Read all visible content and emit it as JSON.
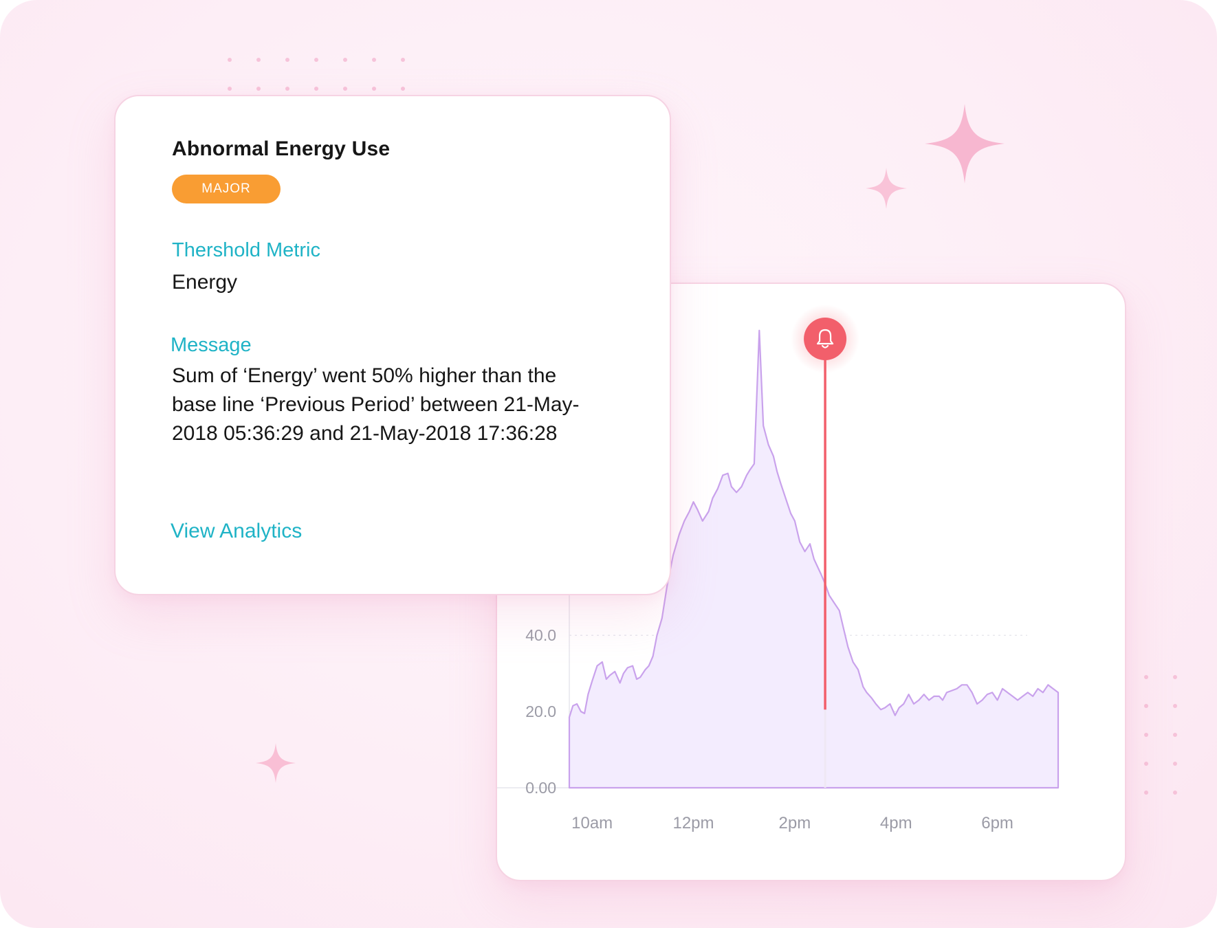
{
  "alert": {
    "title": "Abnormal Energy Use",
    "severity": "MAJOR",
    "severity_color": "#F99D33",
    "metric_label": "Thershold Metric",
    "metric_value": "Energy",
    "message_label": "Message",
    "message_text": "Sum of ‘Energy’ went  50% higher than the base line ‘Previous Period’ between 21-May-2018 05:36:29 and 21-May-2018 17:36:28",
    "link_label": "View Analytics",
    "accent_color": "#1FB3C6"
  },
  "alarm_marker": {
    "icon": "bell-icon",
    "color": "#F25F6B"
  },
  "chart_data": {
    "type": "area",
    "title": "",
    "xlabel": "",
    "ylabel": "",
    "x_tick_labels": [
      "10am",
      "12pm",
      "2pm",
      "4pm",
      "6pm"
    ],
    "x_tick_values": [
      10,
      12,
      14,
      16,
      18
    ],
    "y_tick_labels": [
      "0.00",
      "20.0",
      "40.0"
    ],
    "y_tick_values": [
      0,
      20,
      40
    ],
    "xlim": [
      9.55,
      19.2
    ],
    "ylim": [
      0,
      125
    ],
    "grid": "dotted horizontal",
    "line_color": "#C9A2EC",
    "fill_color": "#F3ECFE",
    "alert_line_color": "#F25F6B",
    "alert_x": 14.6,
    "series": [
      {
        "x": [
          9.55,
          9.62,
          9.7,
          9.78,
          9.85,
          9.92,
          10.0,
          10.1,
          10.2,
          10.28,
          10.35,
          10.45,
          10.55,
          10.62,
          10.7,
          10.8,
          10.88,
          10.95,
          11.05,
          11.12,
          11.2,
          11.28,
          11.38,
          11.48,
          11.6,
          11.72,
          11.82,
          11.92,
          12.0,
          12.08,
          12.18,
          12.3,
          12.38,
          12.48,
          12.58,
          12.68,
          12.75,
          12.85,
          12.95,
          13.05,
          13.12,
          13.2,
          13.3,
          13.38,
          13.48,
          13.58,
          13.65,
          13.72,
          13.82,
          13.92,
          14.0,
          14.1,
          14.2,
          14.3,
          14.38,
          14.45,
          14.52,
          14.6,
          14.68,
          14.78,
          14.88,
          14.96,
          15.05,
          15.15,
          15.25,
          15.35,
          15.42,
          15.52,
          15.6,
          15.7,
          15.78,
          15.88,
          15.98,
          16.06,
          16.15,
          16.25,
          16.35,
          16.45,
          16.55,
          16.65,
          16.75,
          16.85,
          16.92,
          17.0,
          17.1,
          17.2,
          17.3,
          17.4,
          17.5,
          17.6,
          17.7,
          17.8,
          17.9,
          18.0,
          18.1,
          18.2,
          18.3,
          18.4,
          18.5,
          18.6,
          18.7,
          18.8,
          18.9,
          19.0,
          19.1,
          19.2
        ],
        "y": [
          18.5,
          21.5,
          22,
          20,
          19.5,
          24.5,
          28,
          32,
          33,
          28.5,
          29.5,
          30.5,
          27.5,
          30,
          31.5,
          32,
          28.5,
          29,
          31,
          32,
          34.5,
          40,
          44.5,
          53,
          61,
          66.5,
          70,
          72.5,
          75,
          73,
          70,
          72.5,
          76,
          78.5,
          82,
          82.5,
          79,
          77.5,
          79,
          82,
          83.5,
          85,
          120,
          95,
          90,
          87,
          83,
          80,
          76,
          72,
          70,
          64.5,
          62,
          64,
          60,
          58,
          56,
          53.5,
          50.5,
          48.5,
          46.5,
          42,
          37,
          33,
          31,
          26.5,
          25,
          23.5,
          22,
          20.5,
          21,
          22,
          19,
          21,
          22,
          24.5,
          22,
          23,
          24.5,
          23,
          24,
          24,
          23,
          25,
          25.5,
          26,
          27,
          27,
          25,
          22,
          23,
          24.5,
          25,
          23,
          26,
          25,
          24,
          23,
          24,
          25,
          24,
          26,
          25,
          27,
          26,
          25
        ]
      }
    ]
  }
}
